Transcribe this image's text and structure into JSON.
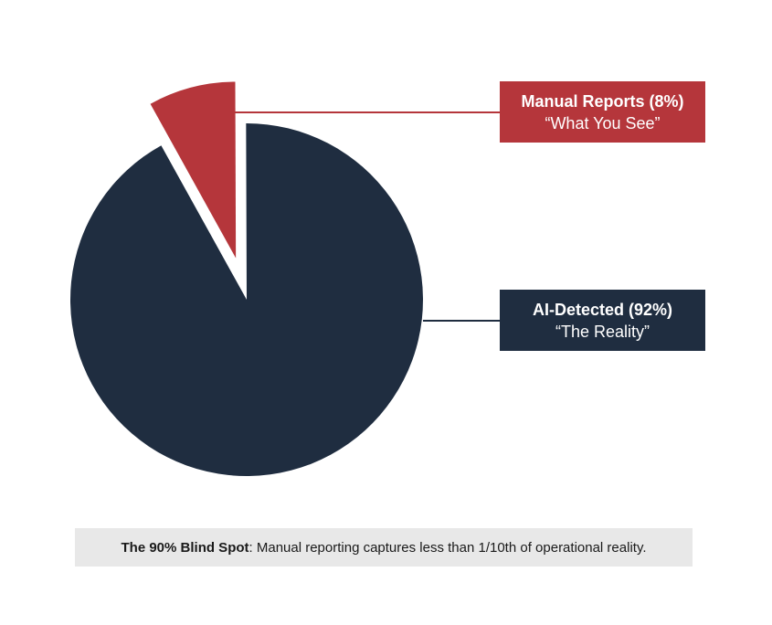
{
  "chart_data": {
    "type": "pie",
    "slices": [
      {
        "label": "Manual Reports (8%)",
        "sublabel": "“What You See”",
        "value": 8,
        "color": "#b5363b",
        "exploded": true
      },
      {
        "label": "AI-Detected (92%)",
        "sublabel": "“The Reality”",
        "value": 92,
        "color": "#1f2d40",
        "exploded": false
      }
    ],
    "start_angle_deg": -29,
    "title": "",
    "legend": "callouts-right"
  },
  "caption": {
    "bold": "The 90% Blind Spot",
    "text": ": Manual reporting captures less than 1/10th of operational reality.",
    "background": "#e8e8e8"
  }
}
